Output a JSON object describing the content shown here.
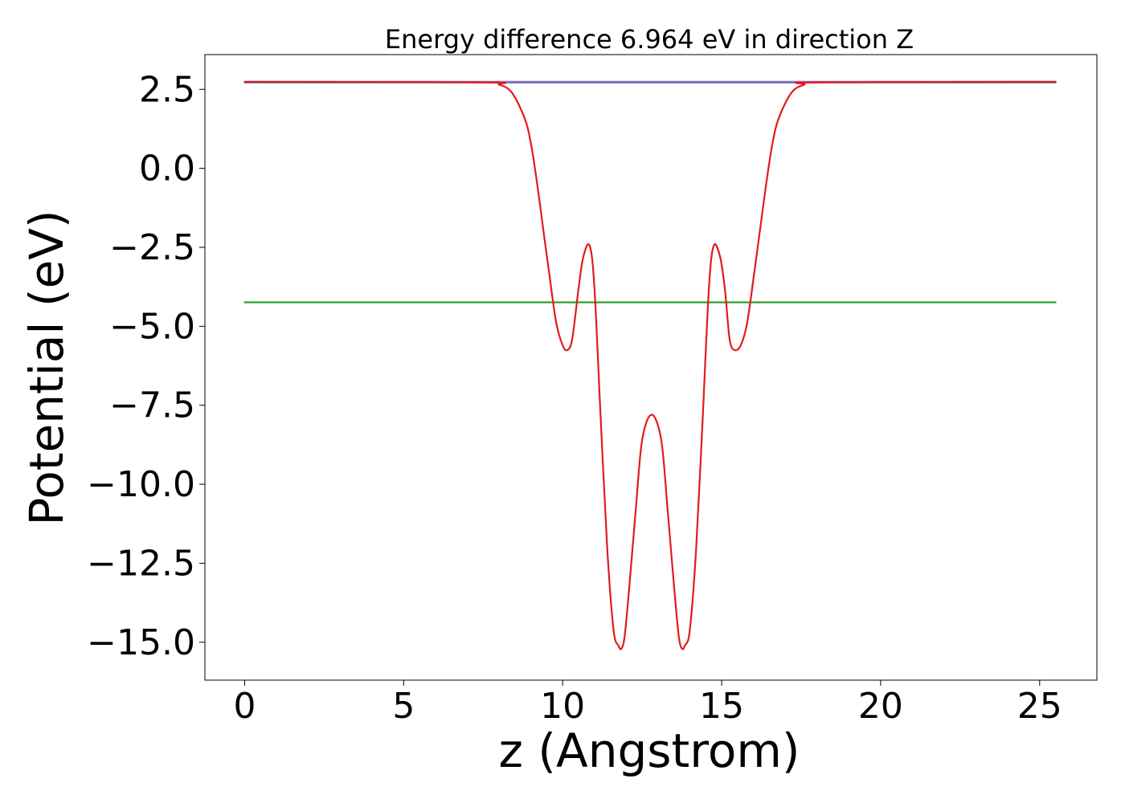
{
  "chart_data": {
    "type": "line",
    "title": "Energy difference 6.964 eV in direction Z",
    "xlabel": "z (Angstrom)",
    "ylabel": "Potential (eV)",
    "xlim": [
      -1.25,
      26.8
    ],
    "ylim": [
      -16.2,
      3.6
    ],
    "x_ticks": [
      0,
      5,
      10,
      15,
      20,
      25
    ],
    "x_tick_labels": [
      "0",
      "5",
      "10",
      "15",
      "20",
      "25"
    ],
    "y_ticks": [
      2.5,
      0,
      -2.5,
      -5,
      -7.5,
      -10,
      -12.5,
      -15
    ],
    "y_tick_labels": [
      "2.5",
      "0.0",
      "−2.5",
      "−5.0",
      "−7.5",
      "−10.0",
      "−12.5",
      "−15.0"
    ],
    "grid": false,
    "legend": "none",
    "series": [
      {
        "color": "#1f77b4",
        "x": [
          0,
          25.5
        ],
        "y": [
          2.72,
          2.72
        ]
      },
      {
        "color": "#2ca02c",
        "x": [
          0,
          25.5
        ],
        "y": [
          -4.24,
          -4.24
        ]
      },
      {
        "color": "#9467bd",
        "x": [
          0,
          7.6,
          17.9,
          25.5
        ],
        "y": [
          2.74,
          2.74,
          2.74,
          2.74
        ]
      },
      {
        "color": "#e41a1c",
        "x": [
          0,
          7.5,
          8.0,
          8.4,
          8.8,
          9.0,
          9.2,
          9.4,
          9.6,
          9.8,
          10.0,
          10.15,
          10.3,
          10.5,
          10.65,
          10.85,
          11.0,
          11.2,
          11.4,
          11.6,
          11.75,
          11.85,
          11.95,
          12.1,
          12.3,
          12.5,
          12.8,
          13.1,
          13.3,
          13.5,
          13.65,
          13.75,
          13.85,
          14.0,
          14.2,
          14.4,
          14.6,
          14.75,
          14.95,
          15.1,
          15.25,
          15.4,
          15.6,
          15.8,
          16.0,
          16.2,
          16.4,
          16.6,
          16.8,
          17.2,
          17.6,
          18.0,
          25.5
        ],
        "y": [
          2.74,
          2.72,
          2.65,
          2.4,
          1.6,
          0.8,
          -0.5,
          -2.0,
          -3.5,
          -4.9,
          -5.6,
          -5.75,
          -5.4,
          -3.8,
          -2.8,
          -2.45,
          -3.8,
          -8.0,
          -12.0,
          -14.6,
          -15.1,
          -15.2,
          -14.8,
          -13.2,
          -10.8,
          -8.6,
          -7.8,
          -8.6,
          -10.8,
          -13.2,
          -14.8,
          -15.2,
          -15.1,
          -14.6,
          -12.0,
          -8.0,
          -3.8,
          -2.45,
          -2.8,
          -3.8,
          -5.4,
          -5.75,
          -5.6,
          -4.9,
          -3.5,
          -2.0,
          -0.5,
          0.8,
          1.6,
          2.4,
          2.65,
          2.72,
          2.74
        ]
      }
    ]
  }
}
